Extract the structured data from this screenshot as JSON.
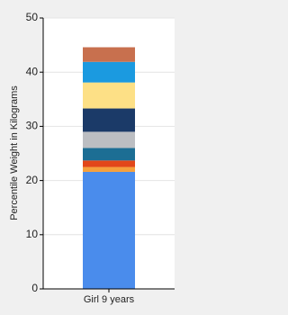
{
  "chart_data": {
    "type": "stacked-bar",
    "y_label": "Percentile Weight in Kilograms",
    "categories": [
      "Girl 9 years"
    ],
    "series": [
      {
        "color": "#4a8cec",
        "values": [
          21.6
        ]
      },
      {
        "color": "#f5a03c",
        "values": [
          0.9
        ]
      },
      {
        "color": "#e2471a",
        "values": [
          1.2
        ]
      },
      {
        "color": "#1c6e94",
        "values": [
          2.3
        ]
      },
      {
        "color": "#bcbec2",
        "values": [
          3.0
        ]
      },
      {
        "color": "#1b3a68",
        "values": [
          4.3
        ]
      },
      {
        "color": "#fde086",
        "values": [
          4.8
        ]
      },
      {
        "color": "#1b9ae0",
        "values": [
          3.8
        ]
      },
      {
        "color": "#c8704e",
        "values": [
          2.7
        ]
      }
    ],
    "ylim": [
      0,
      50
    ],
    "yticks": [
      0,
      10,
      20,
      30,
      40,
      50
    ],
    "grid": true
  }
}
